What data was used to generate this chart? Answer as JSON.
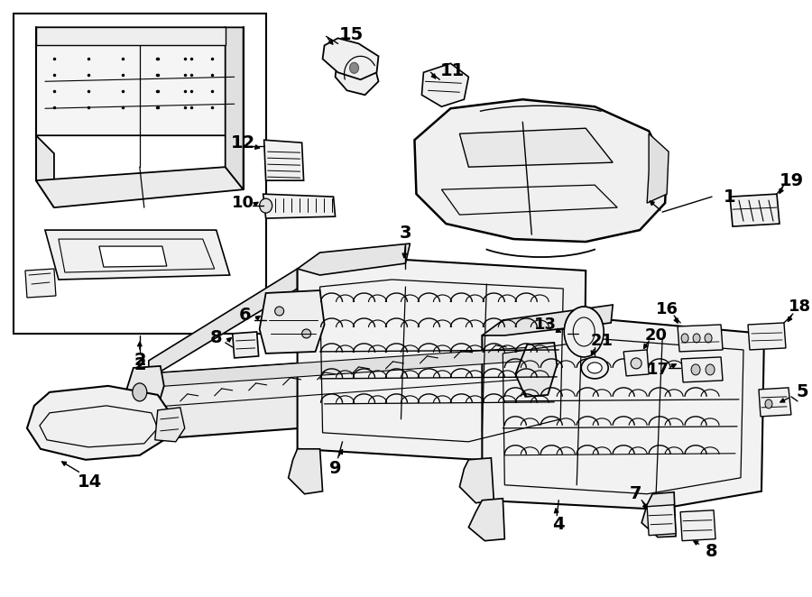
{
  "bg": "#ffffff",
  "lc": "#000000",
  "figw": 9.0,
  "figh": 6.62,
  "dpi": 100
}
